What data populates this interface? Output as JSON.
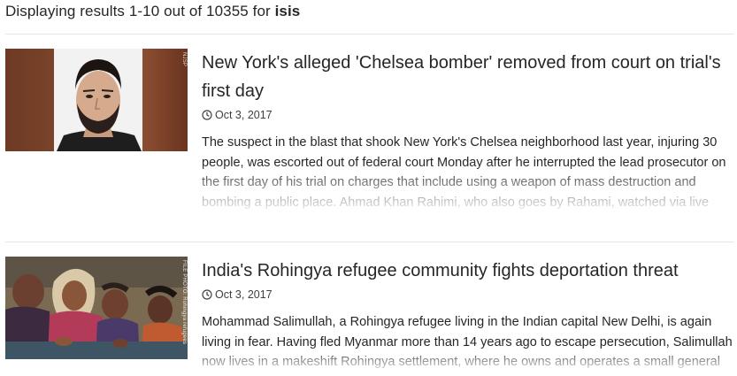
{
  "search": {
    "summary_prefix": "Displaying results 1-10 out of 10355 for ",
    "query": "isis"
  },
  "results": [
    {
      "title": "New York's alleged 'Chelsea bomber' removed from court on trial's first day",
      "date": "Oct 3, 2017",
      "description": "The suspect in the blast that shook New York's Chelsea neighborhood last year, injuring 30 people, was escorted out of federal court Monday after he interrupted the lead prosecutor on the first day of his trial on charges that include using a weapon of mass destruction and bombing a public place. Ahmad Khan Rahimi, who also goes by Rahami, watched via live",
      "image_credit": "NJSP"
    },
    {
      "title": "India's Rohingya refugee community fights deportation threat",
      "date": "Oct 3, 2017",
      "description": "Mohammad Salimullah, a Rohingya refugee living in the Indian capital New Delhi, is again living in fear. Having fled Myanmar more than 14 years ago to escape persecution, Salimullah now lives in a makeshift Rohingya settlement, where he owns and operates a small general",
      "image_credit": "FILE PHOTO: Rohingya refugees"
    }
  ]
}
